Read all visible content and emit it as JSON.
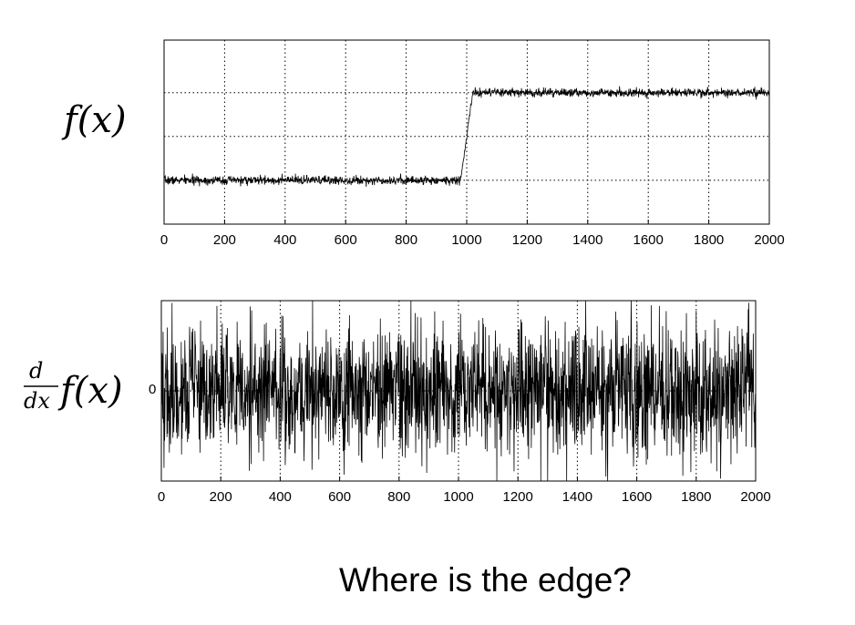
{
  "question": "Where is the edge?",
  "chart_data": [
    {
      "type": "line",
      "ylabel": "f(x)",
      "xlim": [
        0,
        2000
      ],
      "xticks": [
        0,
        200,
        400,
        600,
        800,
        1000,
        1200,
        1400,
        1600,
        1800,
        2000
      ],
      "ylim": [
        -0.5,
        1.6
      ],
      "grid": true,
      "series": [
        {
          "x": [
            0,
            980,
            1020,
            2000
          ],
          "values": [
            0,
            0,
            1,
            1
          ],
          "noise_amplitude": 0.07
        }
      ]
    },
    {
      "type": "line",
      "ylabel": "d/dx f(x)",
      "ytick_label": "0",
      "xlim": [
        0,
        2000
      ],
      "xticks": [
        0,
        200,
        400,
        600,
        800,
        1000,
        1200,
        1400,
        1600,
        1800,
        2000
      ],
      "ylim": [
        -1,
        1
      ],
      "grid": true,
      "series": [
        {
          "x": [
            0,
            2000
          ],
          "values": [
            0,
            0
          ],
          "noise_amplitude": 0.85
        }
      ]
    }
  ]
}
